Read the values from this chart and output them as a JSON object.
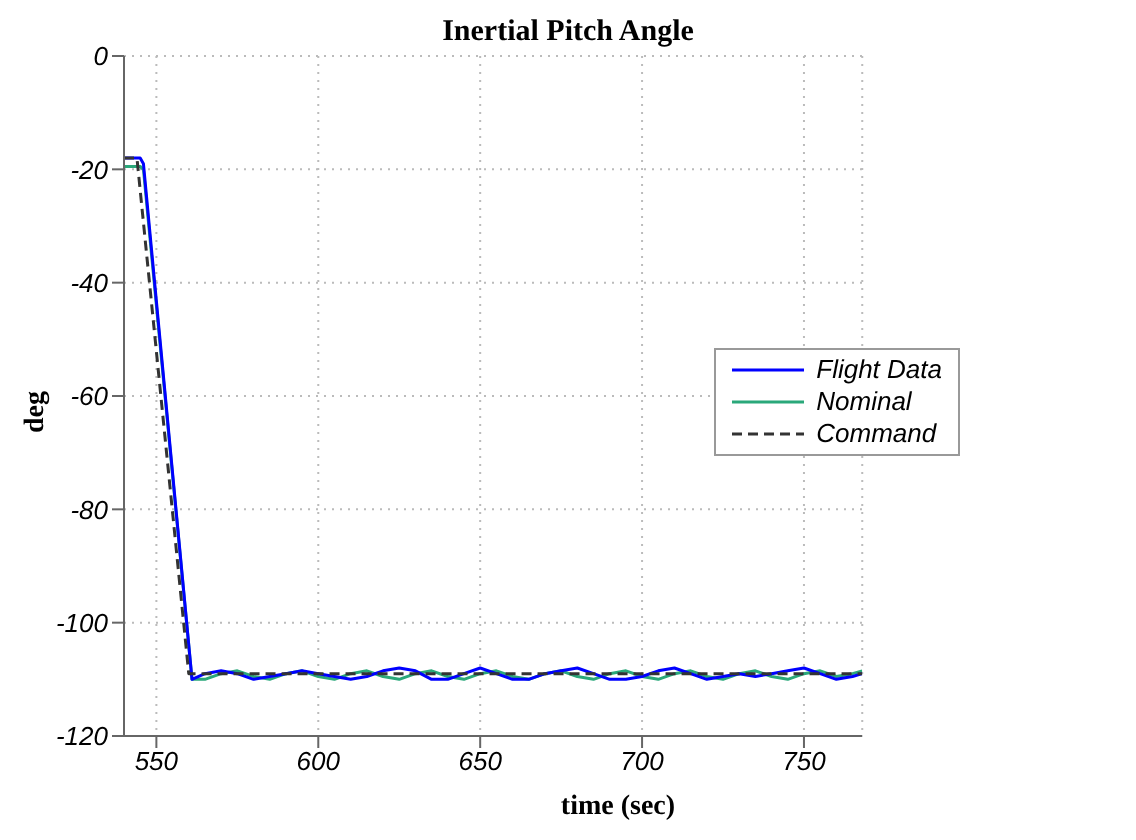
{
  "chart_data": {
    "type": "line",
    "title": "Inertial Pitch Angle",
    "xlabel": "time (sec)",
    "ylabel": "deg",
    "xlim": [
      540,
      768
    ],
    "xticks": [
      550,
      600,
      650,
      700,
      750
    ],
    "ylim": [
      -120,
      0
    ],
    "yticks": [
      -120,
      -100,
      -80,
      -60,
      -40,
      -20,
      0
    ],
    "grid": true,
    "legend": "right",
    "marker": "none",
    "series": [
      {
        "name": "Flight Data",
        "color": "#0000ff",
        "line_style": "solid",
        "x": [
          540,
          545,
          546,
          561,
          565,
          570,
          575,
          580,
          585,
          590,
          595,
          600,
          605,
          610,
          615,
          620,
          625,
          630,
          635,
          640,
          645,
          650,
          655,
          660,
          665,
          670,
          675,
          680,
          685,
          690,
          695,
          700,
          705,
          710,
          715,
          720,
          725,
          730,
          735,
          740,
          745,
          750,
          755,
          760,
          765,
          768
        ],
        "values": [
          -18,
          -18,
          -19,
          -110,
          -109,
          -108.5,
          -109,
          -110,
          -109.5,
          -109,
          -108.5,
          -109,
          -109.5,
          -110,
          -109.5,
          -108.5,
          -108,
          -108.5,
          -110,
          -110,
          -109,
          -108,
          -109,
          -110,
          -110,
          -109,
          -108.5,
          -108,
          -109,
          -110,
          -110,
          -109.5,
          -108.5,
          -108,
          -109,
          -110,
          -109.5,
          -109,
          -109.5,
          -109,
          -108.5,
          -108,
          -109,
          -110,
          -109.5,
          -109
        ]
      },
      {
        "name": "Nominal",
        "color": "#2aa87a",
        "line_style": "solid",
        "x": [
          540,
          545,
          546,
          561,
          565,
          570,
          575,
          580,
          585,
          590,
          595,
          600,
          605,
          610,
          615,
          620,
          625,
          630,
          635,
          640,
          645,
          650,
          655,
          660,
          665,
          670,
          675,
          680,
          685,
          690,
          695,
          700,
          705,
          710,
          715,
          720,
          725,
          730,
          735,
          740,
          745,
          750,
          755,
          760,
          765,
          768
        ],
        "values": [
          -19.5,
          -19.5,
          -20,
          -110,
          -110,
          -109,
          -108.5,
          -109.5,
          -110,
          -109,
          -108.5,
          -109.5,
          -110,
          -109,
          -108.5,
          -109.5,
          -110,
          -109,
          -108.5,
          -109.5,
          -110,
          -109,
          -108.5,
          -109.5,
          -110,
          -109,
          -108.5,
          -109.5,
          -110,
          -109,
          -108.5,
          -109.5,
          -110,
          -109,
          -108.5,
          -109.5,
          -110,
          -109,
          -108.5,
          -109.5,
          -110,
          -109,
          -108.5,
          -109.5,
          -109,
          -108.5
        ]
      },
      {
        "name": "Command",
        "color": "#333333",
        "line_style": "dashed",
        "x": [
          540,
          544,
          560,
          768
        ],
        "values": [
          -18,
          -18,
          -109,
          -109
        ]
      }
    ]
  }
}
